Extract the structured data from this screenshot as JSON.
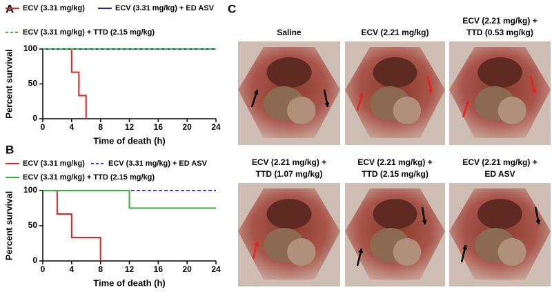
{
  "chart_data": [
    {
      "type": "line",
      "panel_label": "A",
      "xlabel": "Time of death (h)",
      "ylabel": "Percent survival",
      "xlim": [
        0,
        24
      ],
      "ylim": [
        0,
        100
      ],
      "xticks": [
        0,
        4,
        8,
        12,
        16,
        20,
        24
      ],
      "yticks": [
        0,
        50,
        100
      ],
      "series": [
        {
          "name": "ECV (3.31 mg/kg)",
          "color": "#e8221b",
          "dashed": false,
          "x": [
            0,
            4,
            5,
            6
          ],
          "values": [
            100,
            66.7,
            33.3,
            0
          ]
        },
        {
          "name": "ECV (3.31 mg/kg) + ED ASV",
          "color": "#1f1fd6",
          "dashed": false,
          "x": [
            0,
            24
          ],
          "values": [
            100,
            100
          ]
        },
        {
          "name": "ECV (3.31 mg/kg) + TTD (2.15 mg/kg)",
          "color": "#2fc42f",
          "dashed": true,
          "x": [
            0,
            24
          ],
          "values": [
            100,
            100
          ]
        }
      ]
    },
    {
      "type": "line",
      "panel_label": "B",
      "xlabel": "Time of death (h)",
      "ylabel": "Percent survival",
      "xlim": [
        0,
        24
      ],
      "ylim": [
        0,
        100
      ],
      "xticks": [
        0,
        4,
        8,
        12,
        16,
        20,
        24
      ],
      "yticks": [
        0,
        50,
        100
      ],
      "series": [
        {
          "name": "ECV (3.31 mg/kg)",
          "color": "#e8221b",
          "dashed": false,
          "x": [
            0,
            2,
            4,
            8
          ],
          "values": [
            100,
            66.7,
            33.3,
            0
          ]
        },
        {
          "name": "ECV (3.31 mg/kg) + ED ASV",
          "color": "#3535e0",
          "dashed": true,
          "x": [
            0,
            24
          ],
          "values": [
            100,
            100
          ]
        },
        {
          "name": "ECV (3.31 mg/kg) + TTD (2.15 mg/kg)",
          "color": "#2fb52f",
          "dashed": false,
          "x": [
            0,
            12,
            24
          ],
          "values": [
            100,
            75,
            75
          ]
        }
      ]
    }
  ],
  "panel_c": {
    "label": "C",
    "photos": [
      {
        "caption": [
          "Saline"
        ]
      },
      {
        "caption": [
          "ECV (2.21 mg/kg)"
        ]
      },
      {
        "caption": [
          "ECV (2.21 mg/kg) +",
          "TTD (0.53 mg/kg)"
        ]
      },
      {
        "caption": [
          "ECV (2.21 mg/kg) +",
          "TTD (1.07 mg/kg)"
        ]
      },
      {
        "caption": [
          "ECV (2.21 mg/kg) +",
          "TTD (2.15 mg/kg)"
        ]
      },
      {
        "caption": [
          "ECV (2.21 mg/kg) +",
          "ED ASV"
        ]
      }
    ]
  }
}
